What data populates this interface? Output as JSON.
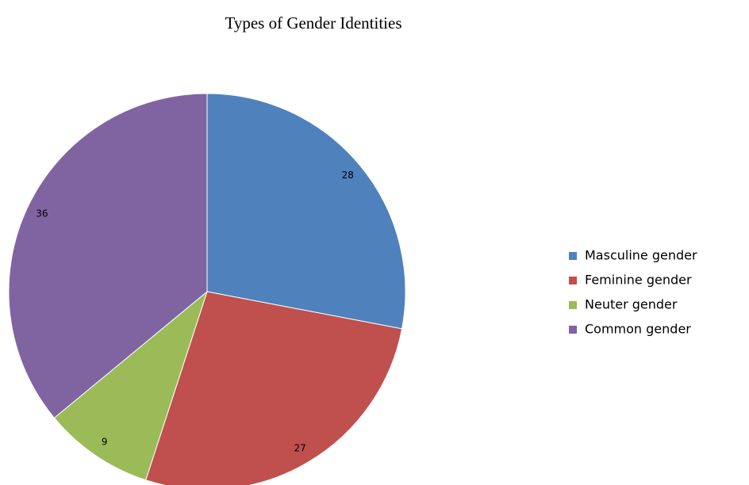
{
  "chart_data": {
    "type": "pie",
    "title": "Types of Gender Identities",
    "categories": [
      "Masculine gender",
      "Feminine gender",
      "Neuter gender",
      "Common gender"
    ],
    "values": [
      28,
      27,
      9,
      36
    ],
    "colors": [
      "#4f81bd",
      "#c0504d",
      "#9bbb59",
      "#8064a2"
    ],
    "legend": "right"
  }
}
